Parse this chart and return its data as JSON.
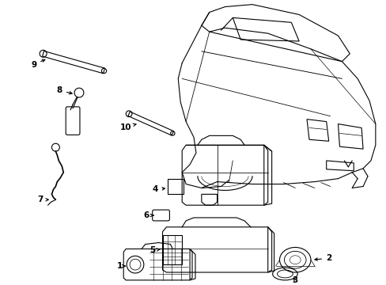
{
  "background_color": "#ffffff",
  "line_color": "#000000",
  "fig_width": 4.89,
  "fig_height": 3.6,
  "dpi": 100,
  "lw": 0.8
}
